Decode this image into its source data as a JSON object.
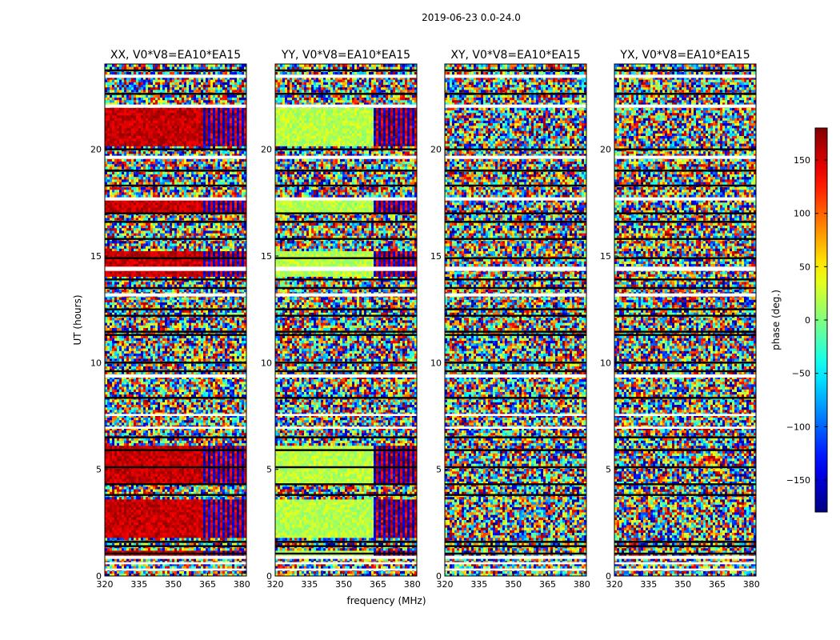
{
  "chart_data": {
    "type": "heatmap",
    "suptitle": "2019-06-23 0.0-24.0",
    "xlabel": "frequency (MHz)",
    "ylabel": "UT (hours)",
    "xlim": [
      320,
      382
    ],
    "ylim": [
      0,
      24
    ],
    "xticks": [
      320,
      335,
      350,
      365,
      380
    ],
    "yticks": [
      0,
      5,
      10,
      15,
      20
    ],
    "colorbar": {
      "label": "phase (deg.)",
      "range": [
        -180,
        180
      ],
      "ticks": [
        150,
        100,
        50,
        0,
        -50,
        -100,
        -150
      ],
      "tick_labels": [
        "150",
        "100",
        "50",
        "0",
        "−50",
        "−100",
        "−150"
      ],
      "colormap": "jet"
    },
    "blank_time_gaps_hours": [
      [
        0.25,
        0.35
      ],
      [
        0.55,
        0.65
      ],
      [
        0.8,
        0.95
      ],
      [
        6.9,
        7.0
      ],
      [
        7.5,
        7.6
      ],
      [
        9.3,
        9.45
      ],
      [
        13.1,
        13.25
      ],
      [
        14.3,
        14.5
      ],
      [
        17.6,
        17.75
      ],
      [
        19.55,
        19.7
      ],
      [
        21.95,
        22.1
      ],
      [
        23.35,
        23.5
      ]
    ],
    "black_lines_hours": [
      1.05,
      1.4,
      1.6,
      3.8,
      4.3,
      5.1,
      5.9,
      6.5,
      8.35,
      9.6,
      10.0,
      11.3,
      11.45,
      12.2,
      12.5,
      13.5,
      13.9,
      14.9,
      15.8,
      16.6,
      17.0,
      18.3,
      19.0,
      20.0,
      22.6,
      23.7
    ],
    "panels": [
      {
        "title": "XX, V0*V8=EA10*EA15",
        "mode": "coherent",
        "base_phase_deg": 155,
        "coherent_until_mhz": 363,
        "coherent_bands_hours": [
          [
            0.9,
            1.2
          ],
          [
            1.8,
            3.6
          ],
          [
            4.3,
            6.1
          ],
          [
            14.1,
            15.2
          ],
          [
            17.0,
            17.6
          ],
          [
            20.2,
            22.0
          ]
        ]
      },
      {
        "title": "YY, V0*V8=EA10*EA15",
        "mode": "coherent",
        "base_phase_deg": 20,
        "coherent_until_mhz": 363,
        "coherent_bands_hours": [
          [
            0.9,
            1.2
          ],
          [
            1.8,
            3.6
          ],
          [
            4.3,
            6.1
          ],
          [
            14.1,
            15.2
          ],
          [
            17.0,
            17.6
          ],
          [
            20.2,
            22.0
          ]
        ]
      },
      {
        "title": "XY, V0*V8=EA10*EA15",
        "mode": "noise"
      },
      {
        "title": "YX, V0*V8=EA10*EA15",
        "mode": "noise"
      }
    ]
  }
}
